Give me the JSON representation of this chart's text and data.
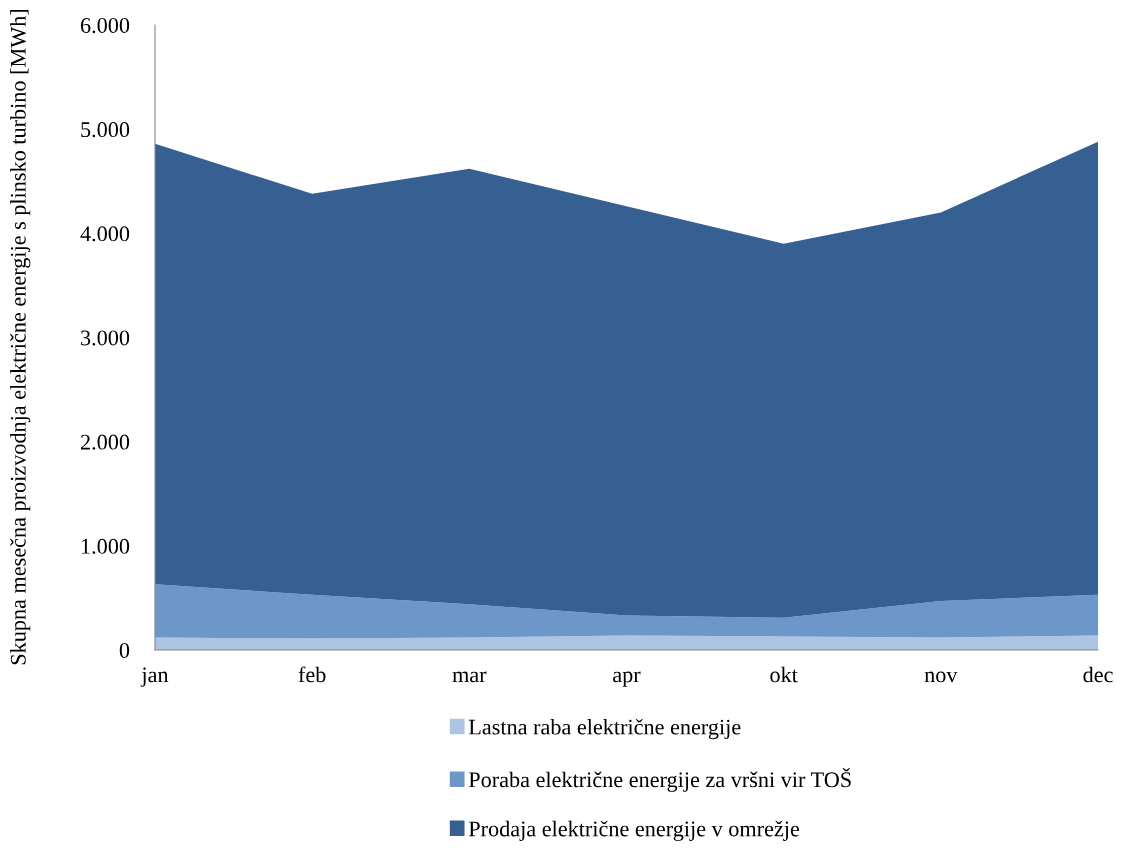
{
  "chart_data": {
    "type": "area",
    "stacked": true,
    "ylabel": "Skupna mesečna proizvodnja električne energije s plinsko turbino [MWh]",
    "categories": [
      "jan",
      "feb",
      "mar",
      "apr",
      "okt",
      "nov",
      "dec"
    ],
    "series": [
      {
        "name": "Lastna raba električne energije",
        "color": "#adc5e3",
        "values": [
          120,
          110,
          120,
          140,
          130,
          120,
          140
        ]
      },
      {
        "name": "Poraba električne energije za vršni vir TOŠ",
        "color": "#6d97c8",
        "values": [
          510,
          420,
          320,
          190,
          180,
          350,
          390
        ]
      },
      {
        "name": "Prodaja električne energije v omrežje",
        "color": "#366092",
        "values": [
          4230,
          3850,
          4180,
          3930,
          3590,
          3730,
          4350
        ]
      }
    ],
    "ylim": [
      0,
      6000
    ],
    "yticks": [
      {
        "value": 0,
        "label": "0"
      },
      {
        "value": 1000,
        "label": "1.000"
      },
      {
        "value": 2000,
        "label": "2.000"
      },
      {
        "value": 3000,
        "label": "3.000"
      },
      {
        "value": 4000,
        "label": "4.000"
      },
      {
        "value": 5000,
        "label": "5.000"
      },
      {
        "value": 6000,
        "label": "6.000"
      }
    ],
    "grid": false,
    "legend": "bottom"
  }
}
